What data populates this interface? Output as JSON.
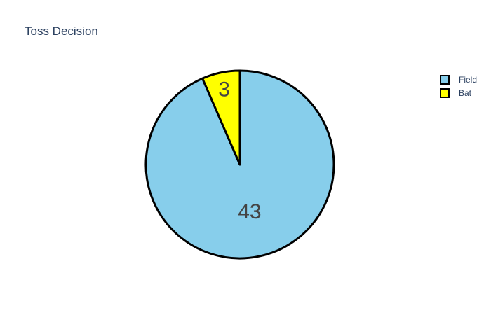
{
  "chart_data": {
    "type": "pie",
    "title": "Toss Decision",
    "labels": [
      "Field",
      "Bat"
    ],
    "values": [
      43,
      3
    ],
    "colors": [
      "#87ceeb",
      "#ffff00"
    ],
    "outline_color": "#000000",
    "direction": "clockwise",
    "start_angle": "top",
    "text_info": "value",
    "legend": {
      "placement": "top-right",
      "entries": [
        "Field",
        "Bat"
      ]
    }
  }
}
